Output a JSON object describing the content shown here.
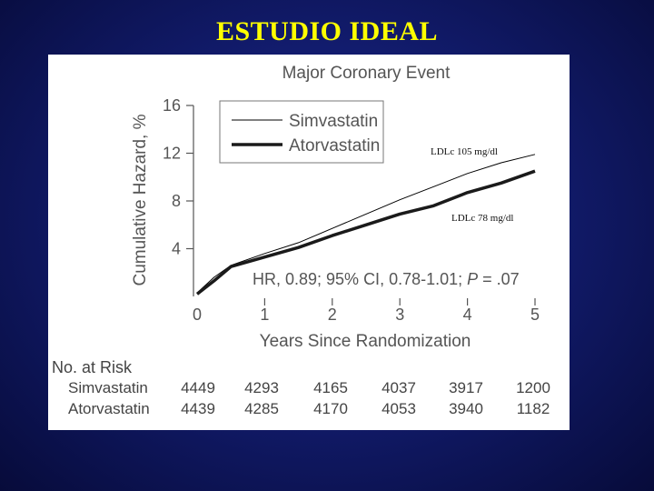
{
  "slide": {
    "title": "ESTUDIO IDEAL"
  },
  "chart_data": {
    "type": "line",
    "title": "Major Coronary Event",
    "xlabel": "Years Since Randomization",
    "ylabel": "Cumulative Hazard, %",
    "xlim": [
      0,
      5
    ],
    "ylim": [
      0,
      16
    ],
    "x_ticks": [
      "0",
      "1",
      "2",
      "3",
      "4",
      "5"
    ],
    "y_ticks": [
      "4",
      "8",
      "12",
      "16"
    ],
    "legend_position": "top-left",
    "series": [
      {
        "name": "Simvastatin",
        "color": "#000000",
        "style": "thin",
        "x": [
          0,
          0.25,
          0.5,
          1,
          1.5,
          2,
          2.5,
          3,
          3.5,
          4,
          4.5,
          5
        ],
        "y": [
          0.3,
          1.6,
          2.6,
          3.6,
          4.5,
          5.7,
          6.9,
          8.1,
          9.2,
          10.3,
          11.2,
          11.9
        ]
      },
      {
        "name": "Atorvastatin",
        "color": "#1a1a1a",
        "style": "thick",
        "x": [
          0,
          0.25,
          0.5,
          1,
          1.5,
          2,
          2.5,
          3,
          3.5,
          4,
          4.5,
          5
        ],
        "y": [
          0.2,
          1.3,
          2.5,
          3.3,
          4.1,
          5.1,
          6.0,
          6.9,
          7.6,
          8.7,
          9.5,
          10.5
        ]
      }
    ],
    "annotations": {
      "hr_text": "HR, 0.89; 95% CI, 0.78-1.01; ",
      "p_label": "P",
      "p_value": " = .07",
      "ldl_simva": "LDLc 105 mg/dl",
      "ldl_atorva": "LDLc 78 mg/dl"
    },
    "risk_table": {
      "header": "No. at Risk",
      "rows": [
        {
          "label": "Simvastatin",
          "values": [
            "4449",
            "4293",
            "4165",
            "4037",
            "3917",
            "1200"
          ]
        },
        {
          "label": "Atorvastatin",
          "values": [
            "4439",
            "4285",
            "4170",
            "4053",
            "3940",
            "1182"
          ]
        }
      ]
    }
  }
}
